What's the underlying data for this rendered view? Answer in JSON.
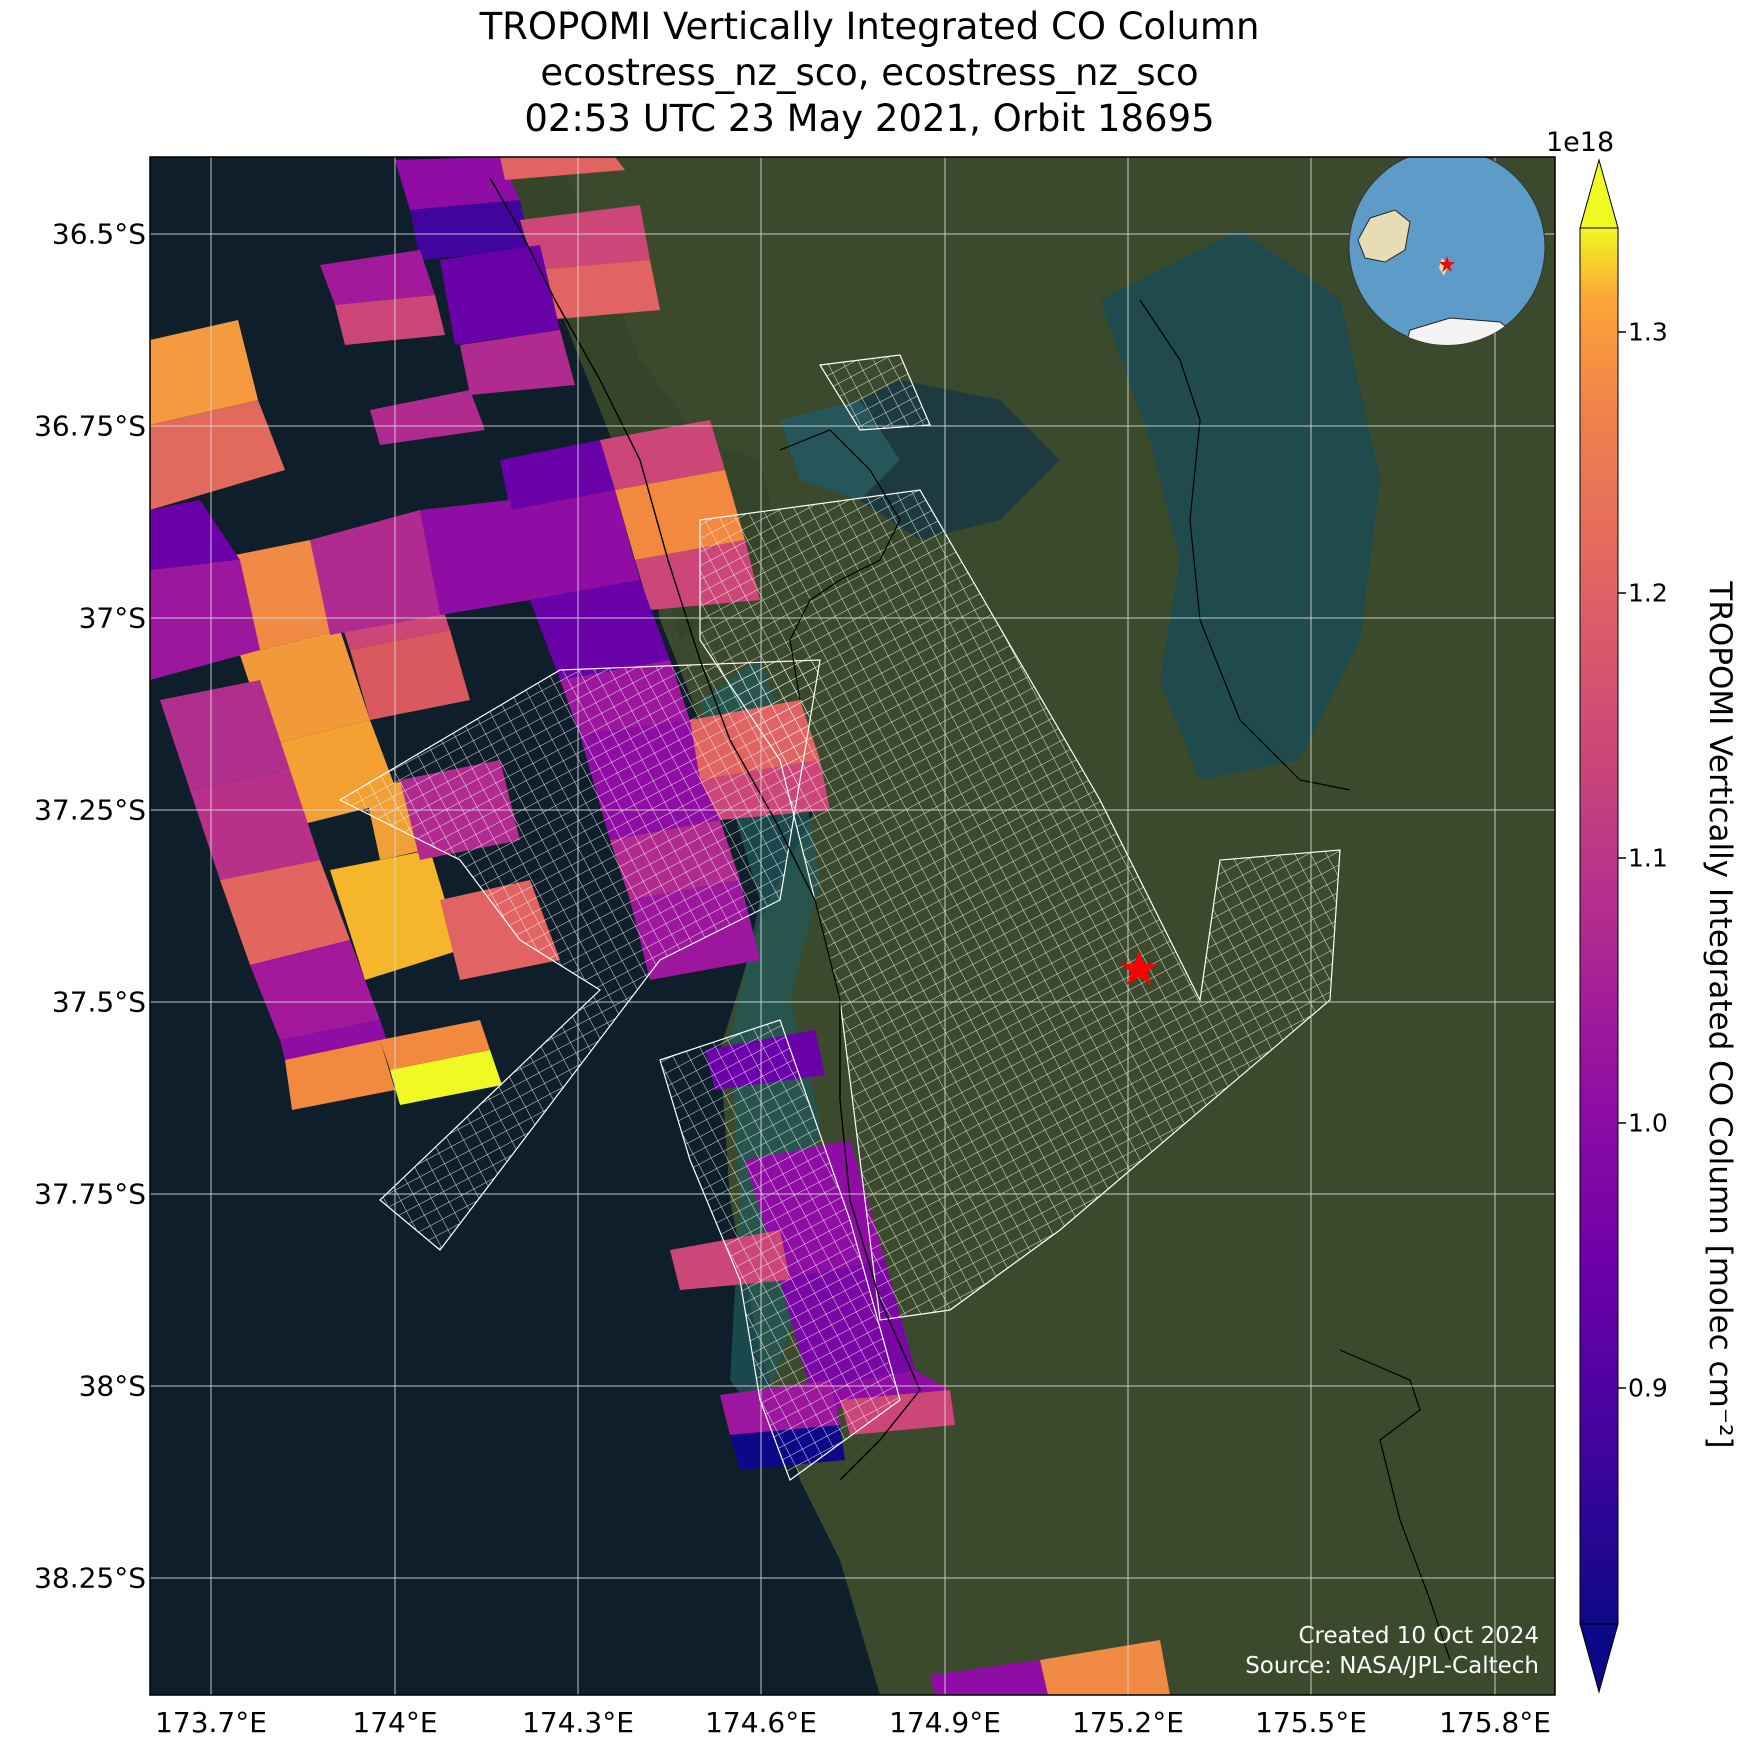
{
  "title": {
    "line1": "TROPOMI Vertically Integrated CO Column",
    "line2": "ecostress_nz_sco, ecostress_nz_sco",
    "line3": "02:53 UTC 23 May 2021, Orbit 18695"
  },
  "map": {
    "projection": "PlateCarree",
    "extent": {
      "lon_min": 173.6,
      "lon_max": 175.9,
      "lat_min": -38.4,
      "lat_max": -36.4
    },
    "background": "satellite imagery",
    "grid": true,
    "lat_ticks": [
      {
        "value": -36.5,
        "label": "36.5°S"
      },
      {
        "value": -36.75,
        "label": "36.75°S"
      },
      {
        "value": -37.0,
        "label": "37°S"
      },
      {
        "value": -37.25,
        "label": "37.25°S"
      },
      {
        "value": -37.5,
        "label": "37.5°S"
      },
      {
        "value": -37.75,
        "label": "37.75°S"
      },
      {
        "value": -38.0,
        "label": "38°S"
      },
      {
        "value": -38.25,
        "label": "38.25°S"
      }
    ],
    "lon_ticks": [
      {
        "value": 173.7,
        "label": "173.7°E"
      },
      {
        "value": 174.0,
        "label": "174°E"
      },
      {
        "value": 174.3,
        "label": "174.3°E"
      },
      {
        "value": 174.6,
        "label": "174.6°E"
      },
      {
        "value": 174.9,
        "label": "174.9°E"
      },
      {
        "value": 175.2,
        "label": "175.2°E"
      },
      {
        "value": 175.5,
        "label": "175.5°E"
      },
      {
        "value": 175.8,
        "label": "175.8°E"
      }
    ],
    "marker": {
      "symbol": "red-star",
      "lon": 175.21,
      "lat": -37.46,
      "color": "#ff0000"
    },
    "inset_globe": {
      "marker": "red-star",
      "ocean_color": "#5d9cc9",
      "land_color": "#e8dcb5"
    }
  },
  "colorbar": {
    "colormap": "plasma",
    "min": 0.82,
    "max": 1.33,
    "extend": "both",
    "exponent_label": "1e18",
    "label": "TROPOMI Vertically Integrated CO Column [molec cm⁻²]",
    "ticks": [
      {
        "value": 0.9,
        "label": "0.9"
      },
      {
        "value": 1.0,
        "label": "1.0"
      },
      {
        "value": 1.1,
        "label": "1.1"
      },
      {
        "value": 1.2,
        "label": "1.2"
      },
      {
        "value": 1.3,
        "label": "1.3"
      }
    ]
  },
  "credits": {
    "created": "Created 10 Oct 2024",
    "source": "Source: NASA/JPL-Caltech"
  },
  "colors": {
    "ocean": "#0f1e2b",
    "land": "#3a4a2a",
    "grid": "#d8d8d8",
    "overlay_grid": "#ffffff"
  }
}
